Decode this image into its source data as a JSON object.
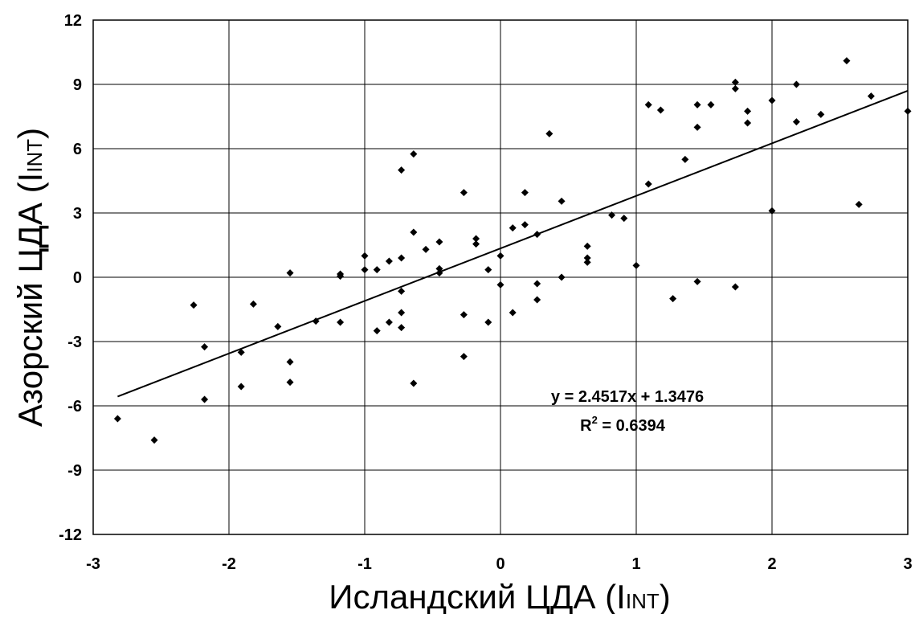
{
  "chart_data": {
    "type": "scatter",
    "title": "",
    "xlabel": "Исландский ЦДА (IINT)",
    "ylabel": "Азорский ЦДА (IINT)",
    "xlabel_parts": {
      "main": "Исландский ЦДА (I",
      "sub": "INT",
      "close": ")"
    },
    "ylabel_parts": {
      "main": "Азорский ЦДА (I",
      "sub": "INT",
      "close": ")"
    },
    "xlim": [
      -3,
      3
    ],
    "ylim": [
      -12,
      12
    ],
    "xticks": [
      -3,
      -2,
      -1,
      0,
      1,
      2,
      3
    ],
    "yticks": [
      -12,
      -9,
      -6,
      -3,
      0,
      3,
      6,
      9,
      12
    ],
    "xtick_labels": [
      "-3",
      "-2",
      "-1",
      "0",
      "1",
      "2",
      "3"
    ],
    "ytick_labels": [
      "-12",
      "-9",
      "-6",
      "-3",
      "0",
      "3",
      "6",
      "9",
      "12"
    ],
    "grid": true,
    "marker": "diamond",
    "color": "#000000",
    "points": [
      [
        -2.82,
        -6.6
      ],
      [
        -2.55,
        -7.6
      ],
      [
        -2.26,
        -1.3
      ],
      [
        -2.18,
        -3.25
      ],
      [
        -2.18,
        -5.7
      ],
      [
        -1.91,
        -3.5
      ],
      [
        -1.91,
        -5.1
      ],
      [
        -1.82,
        -1.25
      ],
      [
        -1.64,
        -2.3
      ],
      [
        -1.55,
        0.2
      ],
      [
        -1.55,
        -3.95
      ],
      [
        -1.55,
        -4.9
      ],
      [
        -1.36,
        -2.05
      ],
      [
        -1.18,
        0.15
      ],
      [
        -1.18,
        0.05
      ],
      [
        -1.18,
        -2.1
      ],
      [
        -1.0,
        1.0
      ],
      [
        -1.0,
        0.35
      ],
      [
        -0.91,
        0.35
      ],
      [
        -0.91,
        -2.5
      ],
      [
        -0.82,
        0.75
      ],
      [
        -0.82,
        -2.1
      ],
      [
        -0.73,
        5.0
      ],
      [
        -0.73,
        0.9
      ],
      [
        -0.73,
        -0.65
      ],
      [
        -0.73,
        -1.65
      ],
      [
        -0.73,
        -2.35
      ],
      [
        -0.64,
        5.75
      ],
      [
        -0.64,
        2.1
      ],
      [
        -0.64,
        -4.95
      ],
      [
        -0.55,
        1.3
      ],
      [
        -0.45,
        1.65
      ],
      [
        -0.45,
        0.4
      ],
      [
        -0.45,
        0.2
      ],
      [
        -0.27,
        3.95
      ],
      [
        -0.27,
        -1.75
      ],
      [
        -0.27,
        -3.7
      ],
      [
        -0.18,
        1.8
      ],
      [
        -0.18,
        1.55
      ],
      [
        -0.09,
        0.35
      ],
      [
        -0.09,
        -2.1
      ],
      [
        0.0,
        1.0
      ],
      [
        0.0,
        -0.35
      ],
      [
        0.09,
        2.3
      ],
      [
        0.09,
        -1.65
      ],
      [
        0.18,
        3.95
      ],
      [
        0.18,
        2.45
      ],
      [
        0.27,
        2.0
      ],
      [
        0.27,
        -0.3
      ],
      [
        0.27,
        -1.05
      ],
      [
        0.36,
        6.7
      ],
      [
        0.45,
        3.55
      ],
      [
        0.45,
        0.0
      ],
      [
        0.64,
        1.45
      ],
      [
        0.64,
        0.9
      ],
      [
        0.64,
        0.7
      ],
      [
        0.82,
        2.9
      ],
      [
        0.91,
        2.75
      ],
      [
        1.0,
        0.55
      ],
      [
        1.09,
        8.05
      ],
      [
        1.09,
        4.35
      ],
      [
        1.18,
        7.8
      ],
      [
        1.27,
        -1.0
      ],
      [
        1.36,
        5.5
      ],
      [
        1.45,
        8.05
      ],
      [
        1.45,
        7.0
      ],
      [
        1.45,
        -0.2
      ],
      [
        1.55,
        8.05
      ],
      [
        1.73,
        9.1
      ],
      [
        1.73,
        8.8
      ],
      [
        1.73,
        -0.45
      ],
      [
        1.82,
        7.75
      ],
      [
        1.82,
        7.2
      ],
      [
        2.0,
        8.25
      ],
      [
        2.0,
        3.1
      ],
      [
        2.18,
        9.0
      ],
      [
        2.18,
        7.25
      ],
      [
        2.36,
        7.6
      ],
      [
        2.55,
        10.1
      ],
      [
        2.64,
        3.4
      ],
      [
        2.73,
        8.45
      ],
      [
        3.0,
        7.75
      ]
    ],
    "trendline": {
      "slope": 2.4517,
      "intercept": 1.3476,
      "x_range": [
        -2.82,
        3.0
      ],
      "equation": "y = 2.4517x + 1.3476",
      "r2_label": "R",
      "r2_sup": "2",
      "r2_value": " = 0.6394"
    }
  }
}
